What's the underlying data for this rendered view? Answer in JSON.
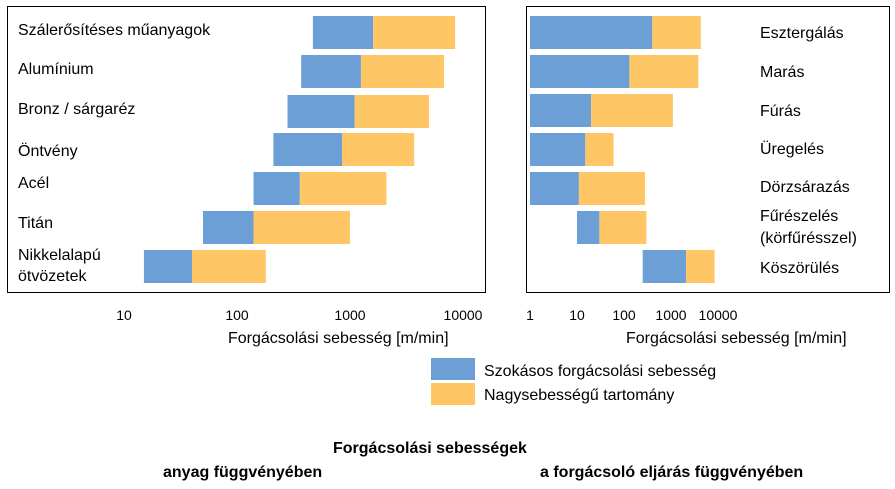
{
  "chart_data": [
    {
      "type": "bar",
      "subtype": "floating-range-horizontal",
      "log_scale_x": true,
      "xlim": [
        5,
        15000
      ],
      "xticks": [
        "10",
        "100",
        "1000",
        "10000"
      ],
      "xlabel": "Forgácsolási sebesség [m/min]",
      "categories": [
        "Szálerősítéses műanyagok",
        "Alumínium",
        "Bronz / sárgaréz",
        "Öntvény",
        "Acél",
        "Titán",
        "Nikkelalapú ötvözetek"
      ],
      "series": [
        {
          "name": "Szokásos forgácsolási sebesség",
          "ranges": [
            [
              470,
              1600
            ],
            [
              370,
              1250
            ],
            [
              280,
              1100
            ],
            [
              210,
              850
            ],
            [
              140,
              360
            ],
            [
              50,
              140
            ],
            [
              15,
              40
            ]
          ]
        },
        {
          "name": "Nagysebességű tartomány",
          "ranges": [
            [
              1600,
              8500
            ],
            [
              1250,
              6800
            ],
            [
              1100,
              5000
            ],
            [
              850,
              3700
            ],
            [
              360,
              2100
            ],
            [
              140,
              1000
            ],
            [
              40,
              180
            ]
          ]
        }
      ],
      "legend": "below",
      "grid": false
    },
    {
      "type": "bar",
      "subtype": "floating-range-horizontal",
      "log_scale_x": true,
      "xlim": [
        1,
        50000
      ],
      "xticks": [
        "1",
        "10",
        "100",
        "1000",
        "10000"
      ],
      "xlabel": "Forgácsolási sebesség [m/min]",
      "categories": [
        "Esztergálás",
        "Marás",
        "Fúrás",
        "Üregelés",
        "Dörzsárazás",
        "Fűrészelés (körfűrésszel)",
        "Köszörülés"
      ],
      "series": [
        {
          "name": "Szokásos forgácsolási sebesség",
          "ranges": [
            [
              1,
              400
            ],
            [
              1,
              130
            ],
            [
              1,
              20
            ],
            [
              1,
              15
            ],
            [
              1,
              11
            ],
            [
              10,
              30
            ],
            [
              250,
              2100
            ]
          ]
        },
        {
          "name": "Nagysebességű tartomány",
          "ranges": [
            [
              400,
              4300
            ],
            [
              130,
              3800
            ],
            [
              20,
              1100
            ],
            [
              15,
              60
            ],
            [
              11,
              280
            ],
            [
              30,
              300
            ],
            [
              2100,
              8500
            ]
          ]
        }
      ],
      "legend": "below",
      "grid": false
    }
  ],
  "colors": {
    "normal": "#6c9fd6",
    "high": "#ffc666"
  },
  "left_panel": {
    "labels": [
      "Szálerősítéses műanyagok",
      "Alumínium",
      "Bronz / sárgaréz",
      "Öntvény",
      "Acél",
      "Titán",
      "Nikkelalapú",
      "ötvözetek"
    ]
  },
  "right_panel": {
    "labels": [
      "Esztergálás",
      "Marás",
      "Fúrás",
      "Üregelés",
      "Dörzsárazás",
      "Fűrészelés",
      "(körfűrésszel)",
      "Köszörülés"
    ]
  },
  "legend": {
    "normal_label": "Szokásos forgácsolási sebesség",
    "high_label": "Nagysebességű tartomány"
  },
  "footer": {
    "title": "Forgácsolási sebességek",
    "left_caption": "anyag függvényében",
    "right_caption": "a forgácsoló eljárás függvényében"
  }
}
